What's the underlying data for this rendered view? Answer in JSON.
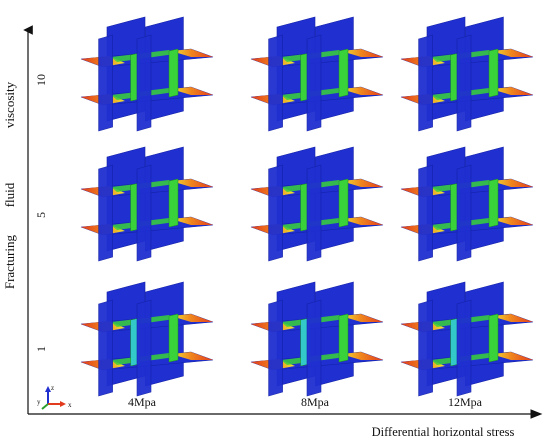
{
  "figure": {
    "x_axis_title": "Differential horizontal stress",
    "y_axis_title_parts": [
      "Fracturing",
      "fluid",
      "viscosity"
    ],
    "columns": [
      "4Mpa",
      "8Mpa",
      "12Mpa"
    ],
    "rows": [
      "10",
      "5",
      "1"
    ],
    "triad": {
      "z": "z",
      "y": "y",
      "x": "x"
    }
  },
  "colors": {
    "plane_blue": "#1f2fd0",
    "plane_blue_dark": "#1422a8",
    "fracture_green": "#3ad23a",
    "fracture_cyan": "#33c9c9",
    "tip_red": "#e23a1c",
    "tip_orange": "#f08a1e",
    "tip_yellow": "#ede534"
  }
}
